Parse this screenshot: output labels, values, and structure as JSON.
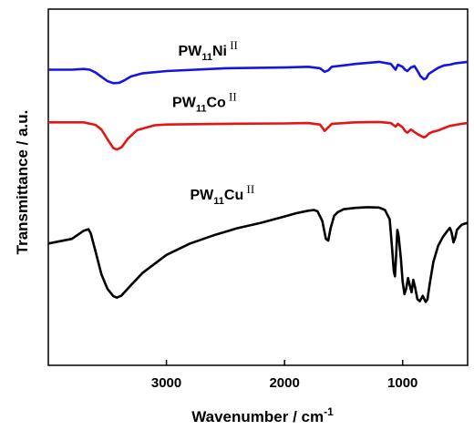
{
  "chart_data": {
    "type": "line",
    "xlabel_main": "Wavenumber / cm",
    "xlabel_sup": "-1",
    "ylabel": "Transmittance / a.u.",
    "xlim": [
      4000,
      450
    ],
    "x_reversed": true,
    "ylim": [
      0,
      100
    ],
    "x_ticks": [
      3000,
      2000,
      1000
    ],
    "x_tick_labels": [
      "3000",
      "2000",
      "1000"
    ],
    "series": [
      {
        "id": "ni",
        "label": {
          "base": "PW",
          "sub": "11",
          "metal": "Ni",
          "ox": "II"
        },
        "color": "#1414e6",
        "points": [
          [
            4000,
            83.0
          ],
          [
            3800,
            83.0
          ],
          [
            3700,
            83.2
          ],
          [
            3650,
            83.0
          ],
          [
            3600,
            82.2
          ],
          [
            3550,
            81.0
          ],
          [
            3500,
            79.8
          ],
          [
            3450,
            79.2
          ],
          [
            3400,
            79.3
          ],
          [
            3350,
            80.1
          ],
          [
            3300,
            81.1
          ],
          [
            3200,
            82.0
          ],
          [
            3000,
            82.6
          ],
          [
            2500,
            83.4
          ],
          [
            2000,
            83.6
          ],
          [
            1800,
            83.8
          ],
          [
            1700,
            83.4
          ],
          [
            1660,
            82.4
          ],
          [
            1630,
            82.8
          ],
          [
            1600,
            83.8
          ],
          [
            1400,
            84.6
          ],
          [
            1200,
            85.2
          ],
          [
            1100,
            84.6
          ],
          [
            1060,
            83.0
          ],
          [
            1040,
            84.4
          ],
          [
            1000,
            83.8
          ],
          [
            980,
            83.0
          ],
          [
            960,
            82.6
          ],
          [
            930,
            83.6
          ],
          [
            900,
            84.0
          ],
          [
            870,
            82.4
          ],
          [
            850,
            81.2
          ],
          [
            820,
            80.3
          ],
          [
            800,
            80.6
          ],
          [
            780,
            81.8
          ],
          [
            700,
            83.5
          ],
          [
            650,
            84.2
          ],
          [
            600,
            84.4
          ],
          [
            550,
            84.8
          ],
          [
            500,
            85.0
          ],
          [
            450,
            85.2
          ]
        ]
      },
      {
        "id": "co",
        "label": {
          "base": "PW",
          "sub": "11",
          "metal": "Co",
          "ox": "II"
        },
        "color": "#e61414",
        "points": [
          [
            4000,
            68.2
          ],
          [
            3800,
            68.2
          ],
          [
            3700,
            68.2
          ],
          [
            3600,
            67.5
          ],
          [
            3550,
            66.2
          ],
          [
            3500,
            63.5
          ],
          [
            3450,
            61.0
          ],
          [
            3420,
            60.6
          ],
          [
            3380,
            61.2
          ],
          [
            3330,
            63.5
          ],
          [
            3250,
            66.0
          ],
          [
            3100,
            67.4
          ],
          [
            3000,
            67.6
          ],
          [
            2500,
            67.8
          ],
          [
            2000,
            67.9
          ],
          [
            1800,
            68.0
          ],
          [
            1700,
            67.6
          ],
          [
            1660,
            65.8
          ],
          [
            1630,
            66.8
          ],
          [
            1600,
            67.8
          ],
          [
            1400,
            68.2
          ],
          [
            1200,
            68.3
          ],
          [
            1100,
            68.0
          ],
          [
            1060,
            67.0
          ],
          [
            1040,
            67.8
          ],
          [
            1000,
            66.8
          ],
          [
            980,
            65.8
          ],
          [
            960,
            65.3
          ],
          [
            930,
            66.2
          ],
          [
            900,
            65.5
          ],
          [
            870,
            64.8
          ],
          [
            850,
            64.5
          ],
          [
            820,
            64.0
          ],
          [
            800,
            64.3
          ],
          [
            780,
            65.0
          ],
          [
            750,
            65.5
          ],
          [
            700,
            65.9
          ],
          [
            650,
            66.6
          ],
          [
            600,
            67.2
          ],
          [
            500,
            67.8
          ],
          [
            450,
            68.0
          ]
        ]
      },
      {
        "id": "cu",
        "label": {
          "base": "PW",
          "sub": "11",
          "metal": "Cu",
          "ox": "II"
        },
        "color": "#000000",
        "points": [
          [
            4000,
            34.2
          ],
          [
            3800,
            35.5
          ],
          [
            3700,
            37.8
          ],
          [
            3660,
            38.2
          ],
          [
            3640,
            37.0
          ],
          [
            3600,
            32.0
          ],
          [
            3550,
            25.5
          ],
          [
            3500,
            21.5
          ],
          [
            3450,
            19.4
          ],
          [
            3420,
            19.0
          ],
          [
            3380,
            19.6
          ],
          [
            3300,
            22.5
          ],
          [
            3200,
            26.0
          ],
          [
            3000,
            31.0
          ],
          [
            2800,
            34.2
          ],
          [
            2600,
            36.5
          ],
          [
            2400,
            38.5
          ],
          [
            2200,
            40.0
          ],
          [
            2000,
            41.8
          ],
          [
            1900,
            42.7
          ],
          [
            1800,
            43.4
          ],
          [
            1750,
            43.6
          ],
          [
            1720,
            43.2
          ],
          [
            1680,
            40.5
          ],
          [
            1650,
            35.5
          ],
          [
            1630,
            35.0
          ],
          [
            1610,
            38.5
          ],
          [
            1580,
            42.0
          ],
          [
            1550,
            43.0
          ],
          [
            1500,
            43.8
          ],
          [
            1400,
            44.2
          ],
          [
            1300,
            44.4
          ],
          [
            1200,
            44.3
          ],
          [
            1150,
            43.6
          ],
          [
            1110,
            41.0
          ],
          [
            1090,
            33.0
          ],
          [
            1075,
            26.5
          ],
          [
            1065,
            25.0
          ],
          [
            1055,
            31.0
          ],
          [
            1045,
            38.0
          ],
          [
            1035,
            36.5
          ],
          [
            1015,
            30.0
          ],
          [
            1000,
            23.5
          ],
          [
            985,
            20.0
          ],
          [
            970,
            21.5
          ],
          [
            955,
            24.5
          ],
          [
            940,
            22.5
          ],
          [
            925,
            20.5
          ],
          [
            910,
            24.0
          ],
          [
            895,
            22.0
          ],
          [
            875,
            18.6
          ],
          [
            855,
            18.0
          ],
          [
            830,
            19.5
          ],
          [
            805,
            17.8
          ],
          [
            790,
            18.5
          ],
          [
            770,
            23.0
          ],
          [
            740,
            29.0
          ],
          [
            700,
            33.5
          ],
          [
            660,
            36.0
          ],
          [
            620,
            37.8
          ],
          [
            600,
            38.6
          ],
          [
            585,
            37.2
          ],
          [
            570,
            34.5
          ],
          [
            555,
            35.8
          ],
          [
            540,
            38.0
          ],
          [
            500,
            39.5
          ],
          [
            450,
            40.0
          ]
        ]
      }
    ],
    "label_positions_note": ""
  }
}
